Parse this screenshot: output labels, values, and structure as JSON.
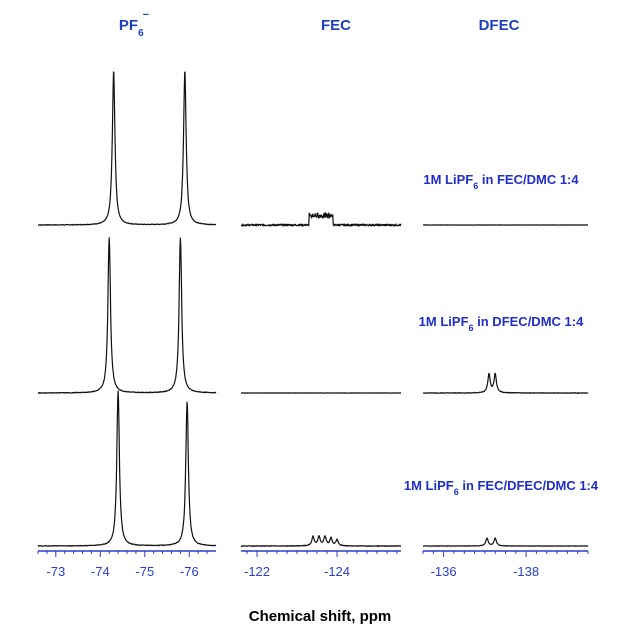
{
  "chart_data": {
    "type": "line",
    "x_title": "Chemical shift, ppm",
    "columns": [
      {
        "id": "pf6",
        "title_main": "PF",
        "title_sub": "6",
        "title_sup": "−",
        "xlim": [
          -72.6,
          -76.6
        ],
        "major_ticks": [
          -73,
          -74,
          -75,
          -76
        ],
        "tick_labels": [
          "-73",
          "-74",
          "-75",
          "-76"
        ],
        "minor_step": 0.2
      },
      {
        "id": "fec",
        "title_main": "FEC",
        "xlim": [
          -121.6,
          -125.6
        ],
        "major_ticks": [
          -122,
          -124
        ],
        "tick_labels": [
          "-122",
          "-124"
        ],
        "minor_step": 0.25
      },
      {
        "id": "dfec",
        "title_main": "DFEC",
        "xlim": [
          -135.5,
          -139.5
        ],
        "major_ticks": [
          -136,
          -138
        ],
        "tick_labels": [
          "-136",
          "-138"
        ],
        "minor_step": 0.25
      }
    ],
    "rows": [
      {
        "label_pre": "1M LiPF",
        "label_sub": "6",
        "label_post": " in FEC/DMC 1:4",
        "spectra": {
          "pf6": {
            "peaks": [
              {
                "x": -74.3,
                "h": 1.0
              },
              {
                "x": -75.9,
                "h": 1.0
              }
            ],
            "noise": 0.004
          },
          "fec": {
            "peaks": [
              {
                "x": -123.6,
                "h": 0.06,
                "w": 0.3
              }
            ],
            "noise": 0.012
          },
          "dfec": {
            "peaks": [],
            "noise": 0.002
          }
        }
      },
      {
        "label_pre": "1M LiPF",
        "label_sub": "6",
        "label_post": " in DFEC/DMC 1:4",
        "spectra": {
          "pf6": {
            "peaks": [
              {
                "x": -74.2,
                "h": 1.0
              },
              {
                "x": -75.8,
                "h": 1.0
              }
            ],
            "noise": 0.004
          },
          "fec": {
            "peaks": [],
            "noise": 0.002
          },
          "dfec": {
            "peaks": [
              {
                "x": -137.1,
                "h": 0.12
              },
              {
                "x": -137.25,
                "h": 0.12
              }
            ],
            "noise": 0.004
          }
        }
      },
      {
        "label_pre": "1M LiPF",
        "label_sub": "6",
        "label_post": " in FEC/DFEC/DMC 1:4",
        "spectra": {
          "pf6": {
            "peaks": [
              {
                "x": -74.4,
                "h": 1.0
              },
              {
                "x": -75.95,
                "h": 0.93
              }
            ],
            "noise": 0.004
          },
          "fec": {
            "peaks": [
              {
                "x": -123.4,
                "h": 0.06
              },
              {
                "x": -123.55,
                "h": 0.06
              },
              {
                "x": -123.7,
                "h": 0.06
              },
              {
                "x": -123.85,
                "h": 0.05
              },
              {
                "x": -124.0,
                "h": 0.04
              }
            ],
            "noise": 0.004
          },
          "dfec": {
            "peaks": [
              {
                "x": -137.05,
                "h": 0.05
              },
              {
                "x": -137.25,
                "h": 0.05
              }
            ],
            "noise": 0.003
          }
        }
      }
    ]
  }
}
